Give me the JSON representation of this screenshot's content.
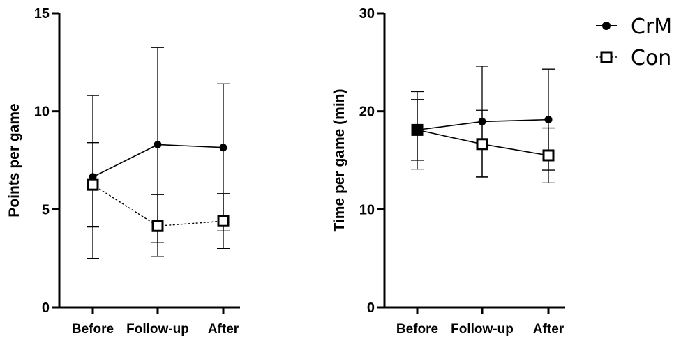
{
  "chart_data": [
    {
      "type": "line",
      "categories": [
        "Before",
        "Follow-up",
        "After"
      ],
      "ylabel": "Points per game",
      "xlabel": "",
      "ylim": [
        0,
        15
      ],
      "yticks": [
        "0",
        "5",
        "10",
        "15"
      ],
      "series": [
        {
          "name": "CrM",
          "values": [
            6.65,
            8.3,
            8.15
          ],
          "err_low": [
            2.5,
            2.6,
            3.0
          ],
          "err_high": [
            10.8,
            13.25,
            11.4
          ],
          "marker": "filled-circle",
          "line": "solid"
        },
        {
          "name": "Con",
          "values": [
            6.25,
            4.15,
            4.4
          ],
          "err_low": [
            4.1,
            3.3,
            3.9
          ],
          "err_high": [
            8.4,
            5.75,
            5.8
          ],
          "marker": "open-square",
          "line": "dashed"
        }
      ]
    },
    {
      "type": "line",
      "categories": [
        "Before",
        "Follow-up",
        "After"
      ],
      "ylabel": "Time per game (min)",
      "xlabel": "",
      "ylim": [
        0,
        30
      ],
      "yticks": [
        "0",
        "10",
        "20",
        "30"
      ],
      "series": [
        {
          "name": "CrM",
          "values": [
            18.1,
            18.95,
            19.15
          ],
          "err_low": [
            14.1,
            13.3,
            14.0
          ],
          "err_high": [
            22.0,
            24.6,
            24.3
          ],
          "marker": "filled-circle",
          "line": "solid"
        },
        {
          "name": "Con",
          "values": [
            18.1,
            16.65,
            15.5
          ],
          "err_low": [
            15.0,
            13.3,
            12.7
          ],
          "err_high": [
            21.2,
            20.1,
            18.3
          ],
          "marker": "open-square",
          "line": "solid"
        }
      ]
    }
  ],
  "legend": {
    "placement": "top-right",
    "items": [
      {
        "label": "CrM",
        "marker": "filled-circle"
      },
      {
        "label": "Con",
        "marker": "open-square"
      }
    ]
  }
}
